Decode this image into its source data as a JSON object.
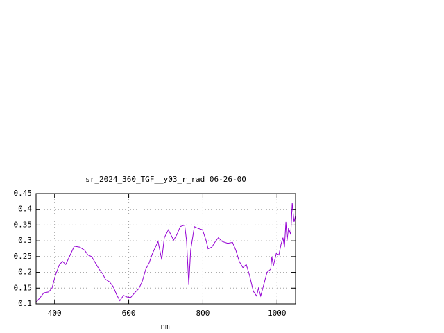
{
  "chart_data": {
    "type": "line",
    "title": "sr_2024_360_TGF__y03_r_rad 06-26-00",
    "x_label": "nm",
    "series": [
      {
        "color": "#9400d3",
        "x": [
          350,
          361,
          371,
          384,
          393,
          402,
          412,
          421,
          430,
          440,
          453,
          468,
          481,
          490,
          500,
          509,
          520,
          530,
          537,
          548,
          558,
          567,
          576,
          586,
          595,
          605,
          618,
          627,
          636,
          646,
          655,
          664,
          679,
          689,
          696,
          707,
          721,
          730,
          739,
          751,
          756,
          762,
          767,
          777,
          786,
          799,
          809,
          814,
          824,
          835,
          842,
          852,
          867,
          880,
          889,
          898,
          908,
          917,
          926,
          936,
          945,
          950,
          956,
          964,
          973,
          983,
          986,
          990,
          998,
          1005,
          1011,
          1016,
          1020,
          1024,
          1027,
          1031,
          1037,
          1041,
          1046,
          1050
        ],
        "values": [
          0.105,
          0.12,
          0.135,
          0.138,
          0.15,
          0.19,
          0.222,
          0.235,
          0.225,
          0.25,
          0.283,
          0.28,
          0.27,
          0.255,
          0.25,
          0.232,
          0.21,
          0.195,
          0.178,
          0.17,
          0.155,
          0.13,
          0.11,
          0.127,
          0.122,
          0.12,
          0.138,
          0.148,
          0.17,
          0.21,
          0.23,
          0.26,
          0.298,
          0.24,
          0.31,
          0.335,
          0.302,
          0.32,
          0.345,
          0.35,
          0.3,
          0.16,
          0.27,
          0.345,
          0.34,
          0.335,
          0.3,
          0.275,
          0.28,
          0.3,
          0.31,
          0.298,
          0.292,
          0.295,
          0.27,
          0.235,
          0.215,
          0.225,
          0.19,
          0.14,
          0.125,
          0.15,
          0.125,
          0.16,
          0.2,
          0.21,
          0.25,
          0.22,
          0.26,
          0.255,
          0.29,
          0.31,
          0.28,
          0.36,
          0.3,
          0.34,
          0.32,
          0.42,
          0.36,
          0.38
        ]
      }
    ],
    "xlim": [
      350,
      1050
    ],
    "xticks": [
      400,
      600,
      800,
      1000
    ],
    "ylim": [
      0.1,
      0.45
    ],
    "yticks": [
      0.1,
      0.15,
      0.2,
      0.25,
      0.3,
      0.35,
      0.4,
      0.45
    ],
    "grid": true
  }
}
